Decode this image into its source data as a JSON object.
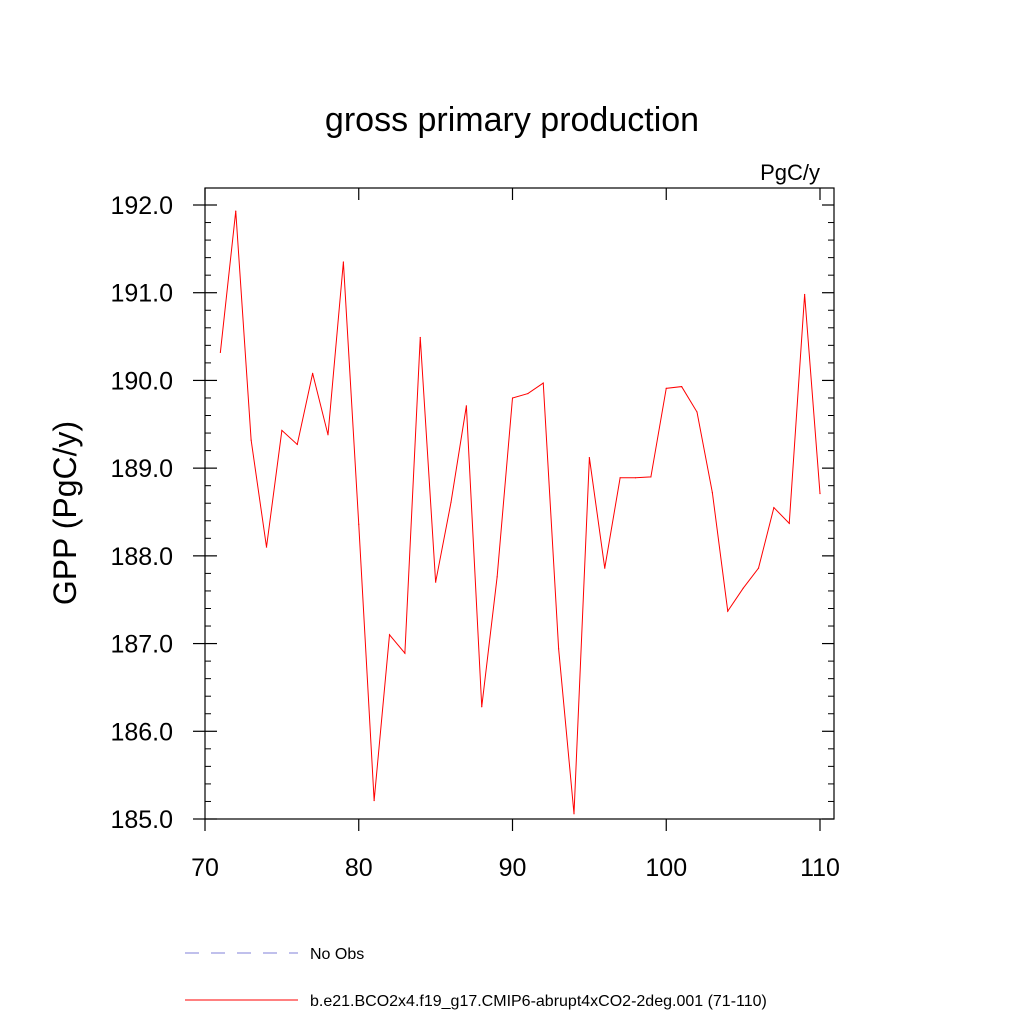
{
  "chart_data": {
    "type": "line",
    "title": "gross primary production",
    "units_label": "PgC/y",
    "ylabel": "GPP  (PgC/y)",
    "xlabel": "",
    "xlim": [
      70,
      110
    ],
    "ylim": [
      185.0,
      192.0
    ],
    "x_ticks": [
      70,
      80,
      90,
      100,
      110
    ],
    "x_tick_labels": [
      "70",
      "80",
      "90",
      "100",
      "110"
    ],
    "y_ticks": [
      185.0,
      186.0,
      187.0,
      188.0,
      189.0,
      190.0,
      191.0,
      192.0
    ],
    "y_tick_labels": [
      "185.0",
      "186.0",
      "187.0",
      "188.0",
      "189.0",
      "190.0",
      "191.0",
      "192.0"
    ],
    "grid": false,
    "legend_position": "bottom",
    "series": [
      {
        "name": "b.e21.BCO2x4.f19_g17.CMIP6-abrupt4xCO2-2deg.001 (71-110)",
        "color": "#ff0000",
        "style": "solid",
        "x": [
          71,
          72,
          73,
          74,
          75,
          76,
          77,
          78,
          79,
          80,
          81,
          82,
          83,
          84,
          85,
          86,
          87,
          88,
          89,
          90,
          91,
          92,
          93,
          94,
          95,
          96,
          97,
          98,
          99,
          100,
          101,
          102,
          103,
          104,
          105,
          106,
          107,
          108,
          109,
          110
        ],
        "y": [
          190.32,
          191.93,
          189.32,
          188.1,
          189.43,
          189.27,
          190.08,
          189.38,
          191.35,
          188.36,
          185.21,
          187.1,
          186.89,
          190.49,
          187.7,
          188.61,
          189.71,
          186.28,
          187.76,
          189.8,
          189.85,
          189.97,
          186.94,
          185.06,
          189.12,
          187.86,
          188.89,
          188.89,
          188.9,
          189.91,
          189.93,
          189.64,
          188.72,
          187.37,
          187.63,
          187.86,
          188.55,
          188.37,
          190.98,
          188.71
        ]
      },
      {
        "name": "No Obs",
        "color": "#8080d8",
        "style": "dashed",
        "x": [],
        "y": []
      }
    ]
  }
}
